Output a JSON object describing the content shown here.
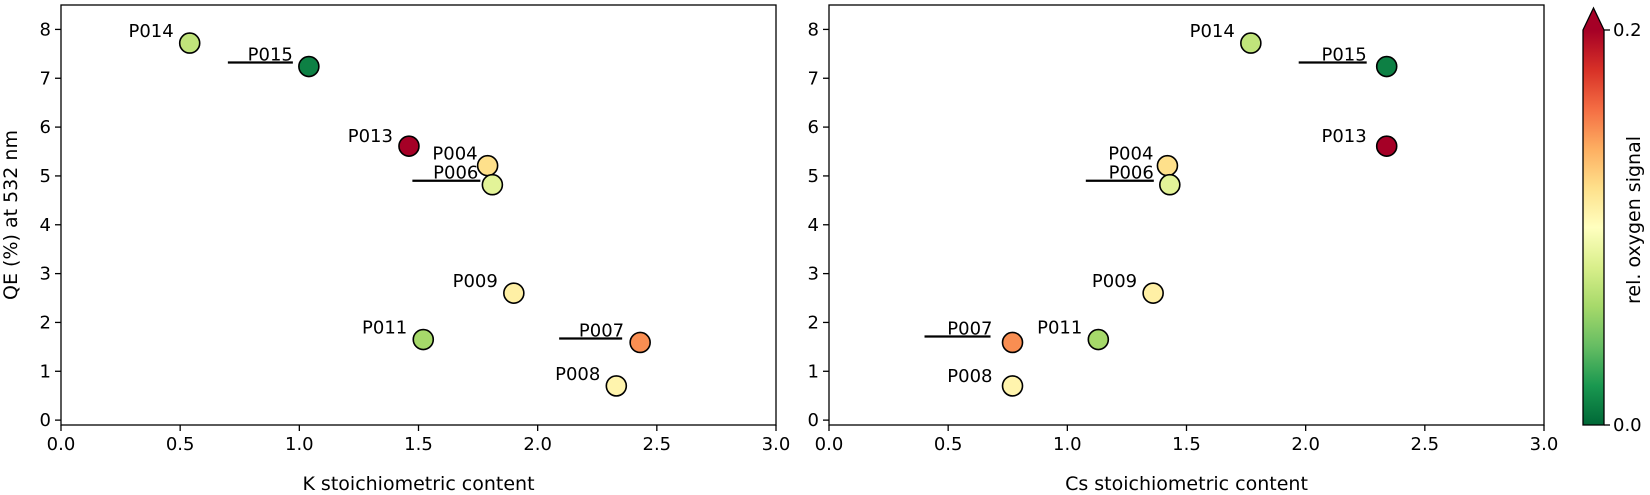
{
  "chart_data": [
    {
      "type": "scatter",
      "xlabel": "K stoichiometric content",
      "ylabel": "QE (%) at 532 nm",
      "xlim": [
        0.0,
        3.0
      ],
      "ylim": [
        -0.1,
        8.5
      ],
      "xticks": [
        "0.0",
        "0.5",
        "1.0",
        "1.5",
        "2.0",
        "2.5",
        "3.0"
      ],
      "yticks": [
        "0",
        "1",
        "2",
        "3",
        "4",
        "5",
        "6",
        "7",
        "8"
      ],
      "grid": false,
      "points": [
        {
          "label": "P014",
          "x": 0.54,
          "y": 7.72,
          "oxygen": 0.07,
          "underlined": false
        },
        {
          "label": "P015",
          "x": 1.04,
          "y": 7.24,
          "oxygen": 0.01,
          "underlined": true
        },
        {
          "label": "P013",
          "x": 1.46,
          "y": 5.61,
          "oxygen": 0.21,
          "underlined": false
        },
        {
          "label": "P004",
          "x": 1.79,
          "y": 5.21,
          "oxygen": 0.12,
          "underlined": false
        },
        {
          "label": "P006",
          "x": 1.81,
          "y": 4.82,
          "oxygen": 0.085,
          "underlined": true
        },
        {
          "label": "P009",
          "x": 1.9,
          "y": 2.6,
          "oxygen": 0.11,
          "underlined": false
        },
        {
          "label": "P011",
          "x": 1.52,
          "y": 1.65,
          "oxygen": 0.06,
          "underlined": false
        },
        {
          "label": "P007",
          "x": 2.43,
          "y": 1.59,
          "oxygen": 0.15,
          "underlined": true
        },
        {
          "label": "P008",
          "x": 2.33,
          "y": 0.7,
          "oxygen": 0.107,
          "underlined": false
        }
      ]
    },
    {
      "type": "scatter",
      "xlabel": "Cs stoichiometric content",
      "ylabel": "",
      "xlim": [
        0.0,
        3.0
      ],
      "ylim": [
        -0.1,
        8.5
      ],
      "xticks": [
        "0.0",
        "0.5",
        "1.0",
        "1.5",
        "2.0",
        "2.5",
        "3.0"
      ],
      "yticks": [
        "0",
        "1",
        "2",
        "3",
        "4",
        "5",
        "6",
        "7",
        "8"
      ],
      "grid": false,
      "points": [
        {
          "label": "P014",
          "x": 1.77,
          "y": 7.72,
          "oxygen": 0.07,
          "underlined": false
        },
        {
          "label": "P015",
          "x": 2.34,
          "y": 7.24,
          "oxygen": 0.01,
          "underlined": true
        },
        {
          "label": "P013",
          "x": 2.34,
          "y": 5.61,
          "oxygen": 0.21,
          "underlined": false
        },
        {
          "label": "P004",
          "x": 1.42,
          "y": 5.21,
          "oxygen": 0.12,
          "underlined": false
        },
        {
          "label": "P006",
          "x": 1.43,
          "y": 4.82,
          "oxygen": 0.085,
          "underlined": true
        },
        {
          "label": "P009",
          "x": 1.36,
          "y": 2.6,
          "oxygen": 0.11,
          "underlined": false
        },
        {
          "label": "P011",
          "x": 1.13,
          "y": 1.65,
          "oxygen": 0.06,
          "underlined": false
        },
        {
          "label": "P007",
          "x": 0.77,
          "y": 1.59,
          "oxygen": 0.15,
          "underlined": true
        },
        {
          "label": "P008",
          "x": 0.77,
          "y": 0.7,
          "oxygen": 0.107,
          "underlined": false
        }
      ]
    }
  ],
  "colorbar": {
    "label": "rel. oxygen signal",
    "min": 0.0,
    "max": 0.2,
    "tick_labels": [
      "0.0",
      "0.2"
    ],
    "colormap": "RdYlGn_r",
    "extend": "max",
    "stops": [
      "#006837",
      "#1a9850",
      "#66bd63",
      "#a6d96a",
      "#d9ef8b",
      "#ffffbf",
      "#fee08b",
      "#fdae61",
      "#f46d43",
      "#d73027",
      "#a50026"
    ]
  }
}
